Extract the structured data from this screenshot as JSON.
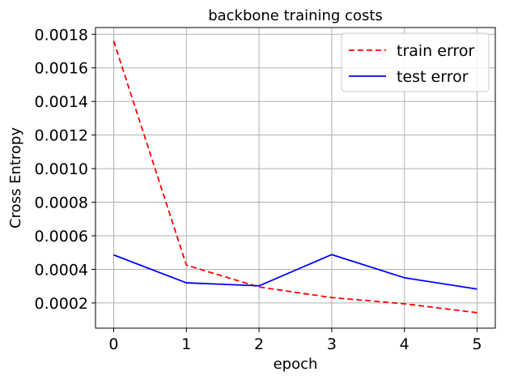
{
  "chart_data": {
    "type": "line",
    "title": "backbone training costs",
    "xlabel": "epoch",
    "ylabel": "Cross Entropy",
    "x": [
      0,
      1,
      2,
      3,
      4,
      5
    ],
    "xticks": [
      "0",
      "1",
      "2",
      "3",
      "4",
      "5"
    ],
    "yticks": [
      "0.0002",
      "0.0004",
      "0.0006",
      "0.0008",
      "0.0010",
      "0.0012",
      "0.0014",
      "0.0016",
      "0.0018"
    ],
    "xlim": [
      -0.25,
      5.25
    ],
    "ylim": [
      5e-05,
      0.00184
    ],
    "grid": true,
    "legend_position": "top-right",
    "series": [
      {
        "name": "train error",
        "values": [
          0.00176,
          0.000425,
          0.000295,
          0.000232,
          0.000195,
          0.000142
        ],
        "color": "#ff0000",
        "style": "dashed"
      },
      {
        "name": "test error",
        "values": [
          0.000486,
          0.00032,
          0.000302,
          0.000488,
          0.00035,
          0.000283
        ],
        "color": "#0000ff",
        "style": "solid"
      }
    ]
  }
}
